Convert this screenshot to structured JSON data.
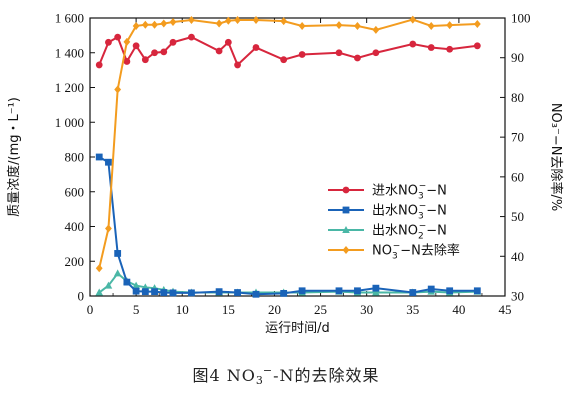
{
  "chart_data": {
    "type": "line",
    "title": "",
    "xlabel": "运行时间/d",
    "ylabel_left": "质量浓度/(mg・L⁻¹)",
    "ylabel_right": "NO₃⁻−N去除率/%",
    "xlim": [
      0,
      45
    ],
    "ylim_left": [
      0,
      1600
    ],
    "ylim_right": [
      30,
      100
    ],
    "x_ticks": [
      0,
      5,
      10,
      15,
      20,
      25,
      30,
      35,
      40,
      45
    ],
    "y_left_ticks": [
      {
        "v": 0,
        "label": "0"
      },
      {
        "v": 200,
        "label": "200"
      },
      {
        "v": 400,
        "label": "400"
      },
      {
        "v": 600,
        "label": "600"
      },
      {
        "v": 800,
        "label": "800"
      },
      {
        "v": 1000,
        "label": "1 000"
      },
      {
        "v": 1200,
        "label": "1 200"
      },
      {
        "v": 1400,
        "label": "1 400"
      },
      {
        "v": 1600,
        "label": "1 600"
      }
    ],
    "y_right_ticks": [
      30,
      40,
      50,
      60,
      70,
      80,
      90,
      100
    ],
    "legend_position": "center-right",
    "grid": false,
    "series": [
      {
        "name": "进水NO₃⁻−N",
        "name_main": "进水NO",
        "name_sub": "3",
        "name_sup": "−",
        "name_tail": "−N",
        "axis": "left",
        "color": "#d7263d",
        "marker": "circle",
        "x": [
          1,
          2,
          3,
          4,
          5,
          6,
          7,
          8,
          9,
          11,
          14,
          15,
          16,
          18,
          21,
          23,
          27,
          29,
          31,
          35,
          37,
          39,
          42
        ],
        "y": [
          1330,
          1460,
          1490,
          1350,
          1440,
          1360,
          1400,
          1405,
          1460,
          1490,
          1410,
          1460,
          1330,
          1430,
          1360,
          1390,
          1400,
          1370,
          1400,
          1450,
          1430,
          1420,
          1440
        ]
      },
      {
        "name": "出水NO₃⁻−N",
        "name_main": "出水NO",
        "name_sub": "3",
        "name_sup": "−",
        "name_tail": "−N",
        "axis": "left",
        "color": "#1a63b8",
        "marker": "square",
        "x": [
          1,
          2,
          3,
          4,
          5,
          6,
          7,
          8,
          9,
          11,
          14,
          16,
          18,
          21,
          23,
          27,
          29,
          31,
          35,
          37,
          39,
          42
        ],
        "y": [
          800,
          770,
          245,
          80,
          28,
          25,
          25,
          20,
          18,
          18,
          25,
          20,
          10,
          15,
          30,
          30,
          30,
          45,
          20,
          40,
          30,
          30
        ]
      },
      {
        "name": "出水NO₂⁻−N",
        "name_main": "出水NO",
        "name_sub": "2",
        "name_sup": "−",
        "name_tail": "−N",
        "axis": "left",
        "color": "#4ab7a6",
        "marker": "triangle",
        "x": [
          1,
          2,
          3,
          4,
          5,
          6,
          7,
          8,
          9,
          11,
          14,
          16,
          18,
          21,
          23,
          27,
          29,
          31,
          35,
          37,
          39,
          42
        ],
        "y": [
          20,
          60,
          130,
          85,
          60,
          50,
          45,
          35,
          25,
          20,
          20,
          20,
          20,
          20,
          20,
          25,
          20,
          20,
          20,
          25,
          20,
          25
        ]
      },
      {
        "name": "NO₃⁻−N去除率",
        "name_main": "NO",
        "name_sub": "3",
        "name_sup": "−",
        "name_tail": "−N去除率",
        "axis": "right",
        "color": "#f39c1f",
        "marker": "diamond",
        "x": [
          1,
          2,
          3,
          4,
          5,
          6,
          7,
          8,
          9,
          11,
          14,
          15,
          16,
          18,
          21,
          23,
          27,
          29,
          31,
          35,
          37,
          39,
          42
        ],
        "y": [
          37,
          47,
          82,
          94,
          98,
          98.3,
          98.3,
          98.6,
          99,
          99.5,
          98.6,
          99.3,
          99.5,
          99.5,
          99.2,
          98,
          98.2,
          98,
          97,
          99.6,
          98,
          98.2,
          98.5
        ]
      }
    ]
  },
  "caption": {
    "prefix": "图4   NO",
    "sub": "3",
    "sup": "−",
    "suffix": "-N的去除效果"
  }
}
